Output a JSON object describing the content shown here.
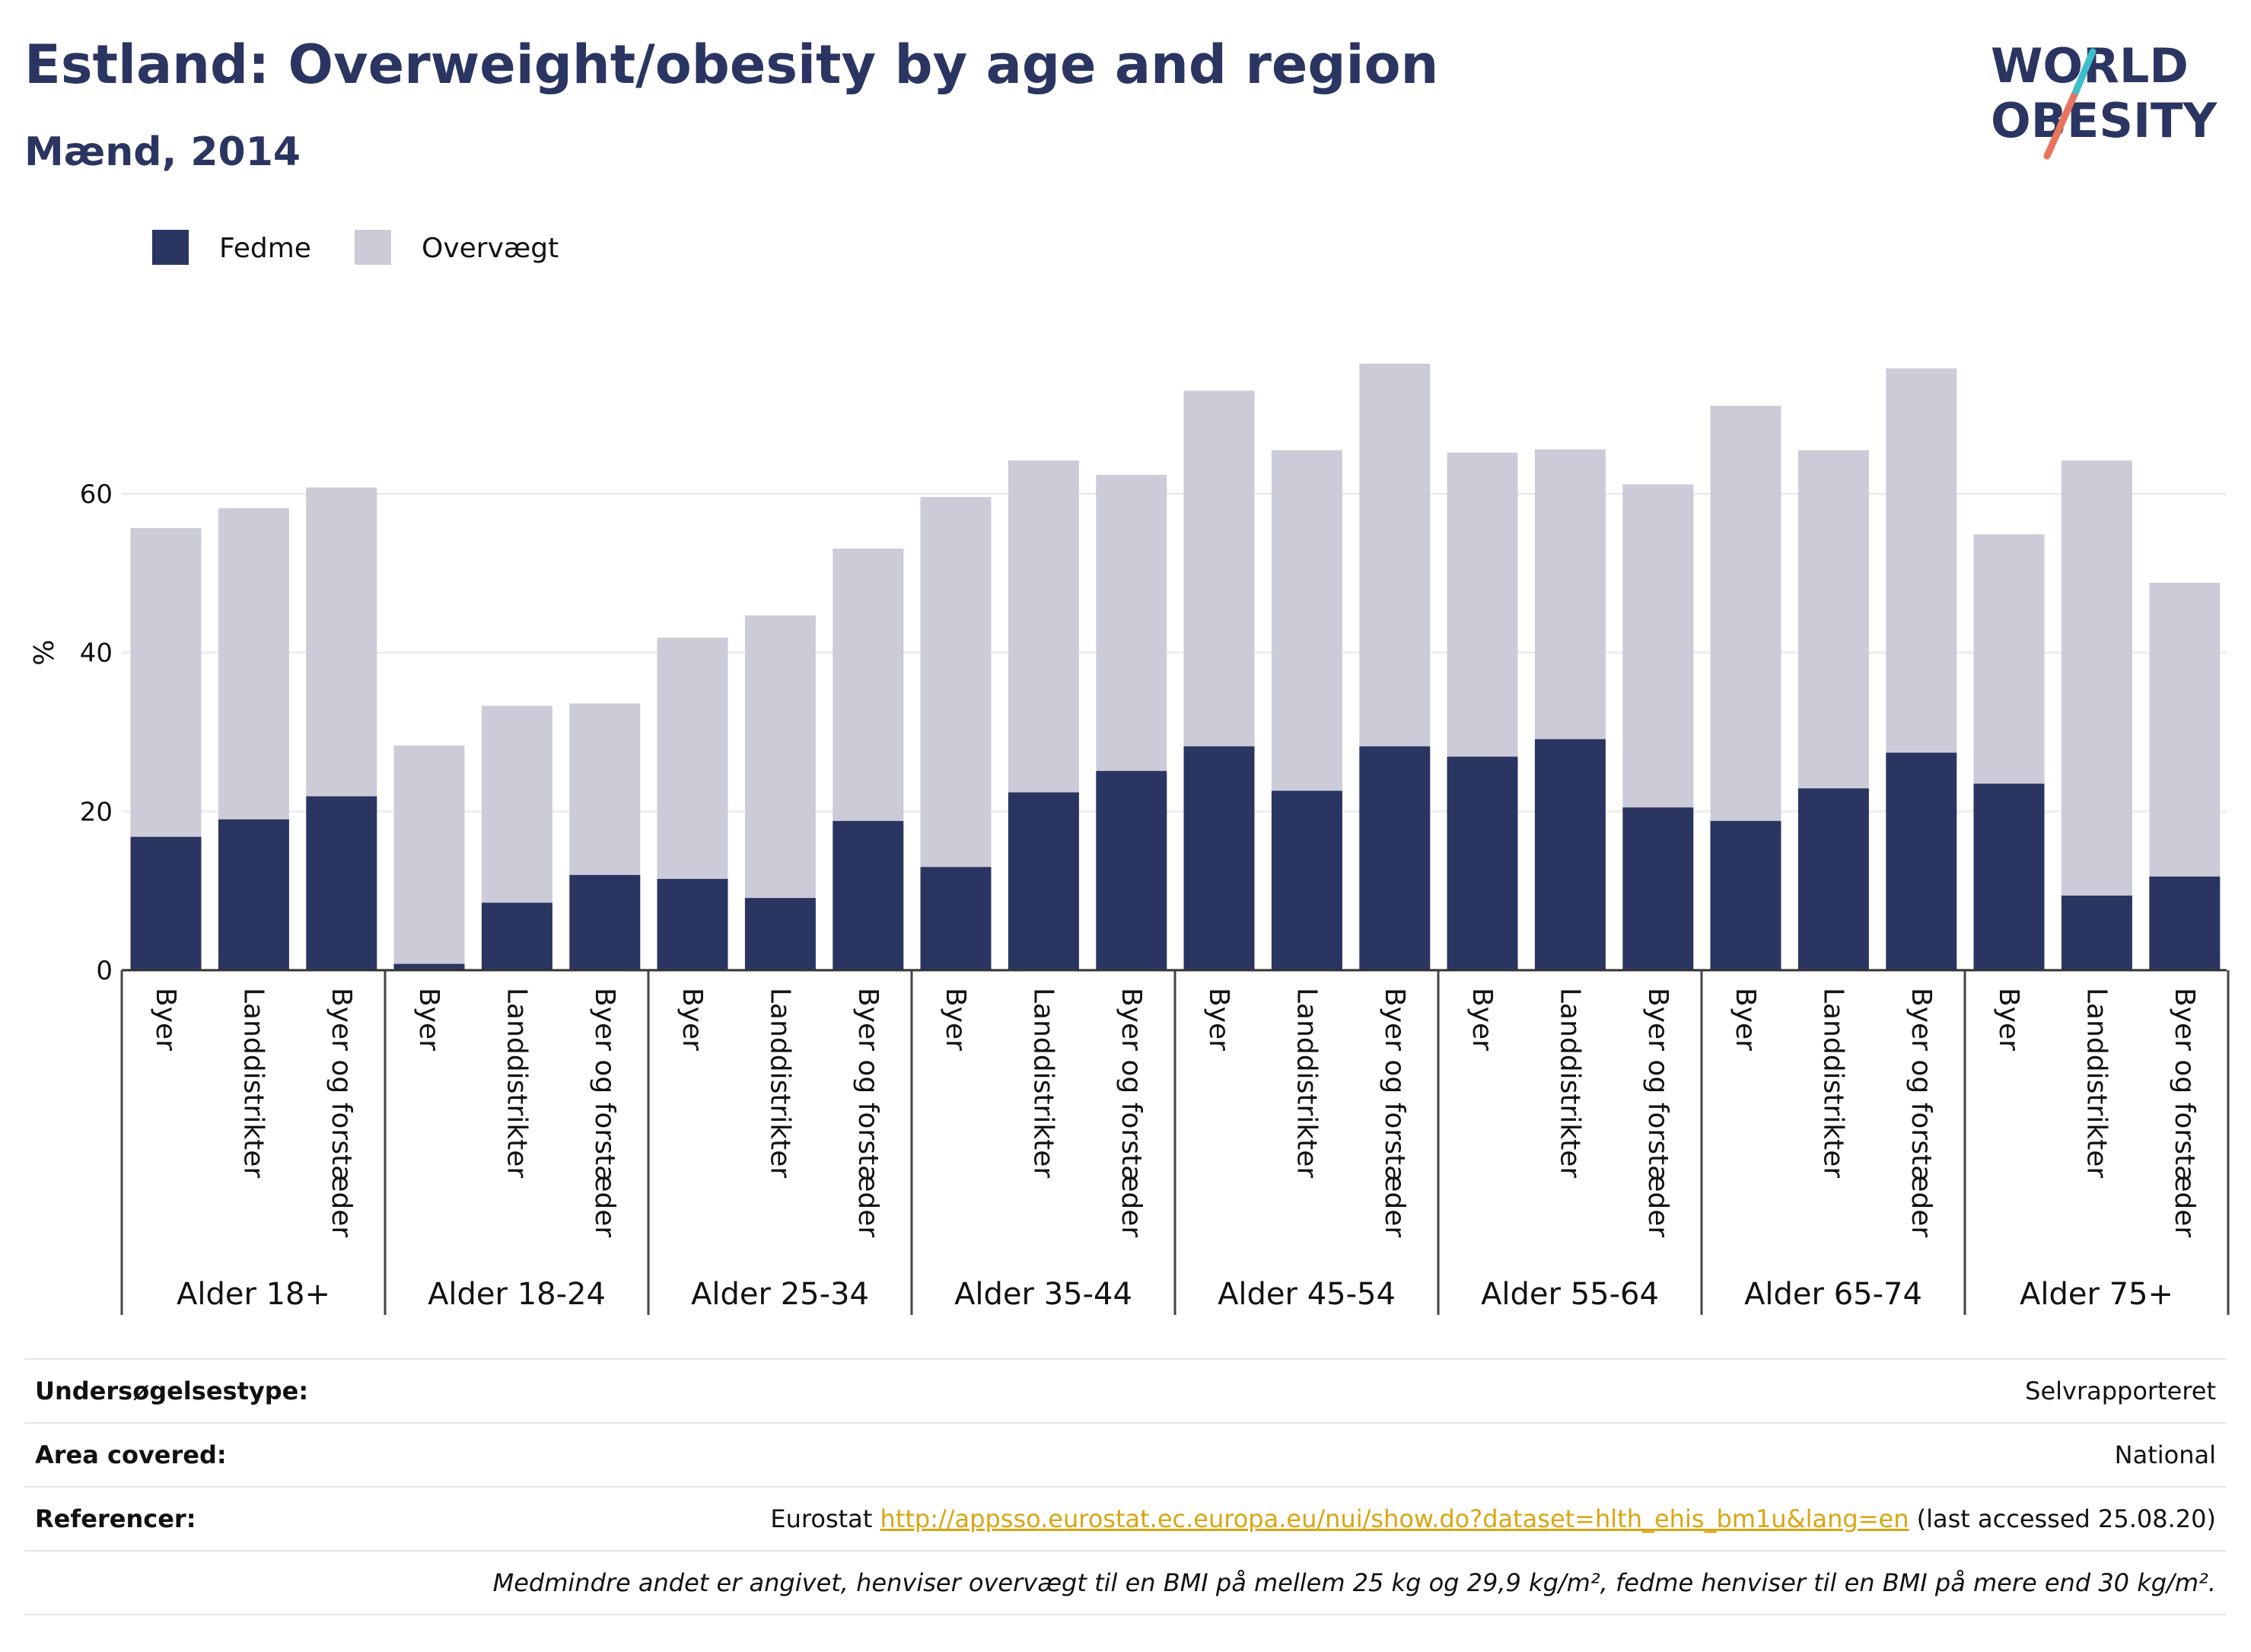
{
  "header": {
    "title": "Estland: Overweight/obesity by age and region",
    "subtitle": "Mænd, 2014"
  },
  "logo": {
    "line1": "WORLD",
    "line2": "OBESITY"
  },
  "chart_data": {
    "type": "bar",
    "stacked": true,
    "ylabel": "%",
    "ylim": [
      0,
      80
    ],
    "yticks": [
      0,
      20,
      40,
      60
    ],
    "grid": true,
    "legend_position": "top-left",
    "colors": {
      "Fedme": "#2b3561",
      "Overvægt": "#cbccd8"
    },
    "groups": [
      {
        "label": "Alder 18+",
        "categories": [
          "Byer",
          "Landdistrikter",
          "Byer og forstæder"
        ]
      },
      {
        "label": "Alder 18-24",
        "categories": [
          "Byer",
          "Landdistrikter",
          "Byer og forstæder"
        ]
      },
      {
        "label": "Alder 25-34",
        "categories": [
          "Byer",
          "Landdistrikter",
          "Byer og forstæder"
        ]
      },
      {
        "label": "Alder 35-44",
        "categories": [
          "Byer",
          "Landdistrikter",
          "Byer og forstæder"
        ]
      },
      {
        "label": "Alder 45-54",
        "categories": [
          "Byer",
          "Landdistrikter",
          "Byer og forstæder"
        ]
      },
      {
        "label": "Alder 55-64",
        "categories": [
          "Byer",
          "Landdistrikter",
          "Byer og forstæder"
        ]
      },
      {
        "label": "Alder 65-74",
        "categories": [
          "Byer",
          "Landdistrikter",
          "Byer og forstæder"
        ]
      },
      {
        "label": "Alder 75+",
        "categories": [
          "Byer",
          "Landdistrikter",
          "Byer og forstæder"
        ]
      }
    ],
    "series": [
      {
        "name": "Fedme",
        "values": [
          16.8,
          19.0,
          21.9,
          0.8,
          8.5,
          12.0,
          11.5,
          9.1,
          18.8,
          13.0,
          22.4,
          25.1,
          28.2,
          22.6,
          28.2,
          26.9,
          29.1,
          20.5,
          18.8,
          22.9,
          27.4,
          23.5,
          9.4,
          11.8
        ]
      },
      {
        "name": "Overvægt",
        "values": [
          38.9,
          39.2,
          38.9,
          27.5,
          24.8,
          21.6,
          30.4,
          35.6,
          34.3,
          46.6,
          41.8,
          37.3,
          44.8,
          42.9,
          48.2,
          38.3,
          36.5,
          40.7,
          52.3,
          42.6,
          48.4,
          31.4,
          54.8,
          37.0
        ]
      }
    ]
  },
  "footer": {
    "survey_type_label": "Undersøgelsestype:",
    "survey_type_value": "Selvrapporteret",
    "area_label": "Area covered:",
    "area_value": "National",
    "references_label": "Referencer:",
    "references_prefix": "Eurostat",
    "references_link": "http://appsso.eurostat.ec.europa.eu/nui/show.do?dataset=hlth_ehis_bm1u&lang=en",
    "references_suffix": "(last accessed 25.08.20)",
    "note": "Medmindre andet er angivet, henviser overvægt til en BMI på mellem 25 kg og 29,9 kg/m², fedme henviser til en BMI på mere end 30 kg/m²."
  }
}
